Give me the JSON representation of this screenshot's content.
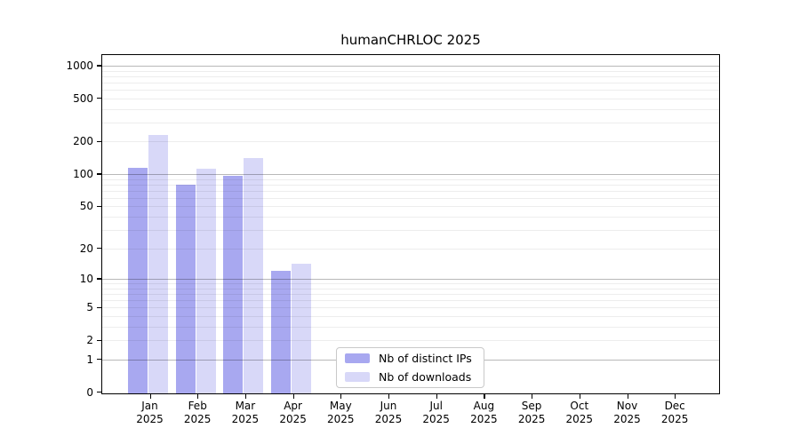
{
  "chart_data": {
    "type": "bar",
    "title": "humanCHRLOC 2025",
    "x_months": [
      "Jan",
      "Feb",
      "Mar",
      "Apr",
      "May",
      "Jun",
      "Jul",
      "Aug",
      "Sep",
      "Oct",
      "Nov",
      "Dec"
    ],
    "x_year": "2025",
    "yticks": [
      0,
      1,
      2,
      5,
      10,
      20,
      50,
      100,
      200,
      500,
      1000
    ],
    "ylim": [
      0,
      1000
    ],
    "yscale": "log1p",
    "grid": "horizontal-major-and-minor",
    "legend_position": "inside-bottom-center",
    "series": [
      {
        "name": "Nb of distinct IPs",
        "color": "#a8a8f0",
        "values": [
          114,
          79,
          96,
          12,
          0,
          0,
          0,
          0,
          0,
          0,
          0,
          0
        ]
      },
      {
        "name": "Nb of downloads",
        "color": "#d8d8f8",
        "values": [
          228,
          112,
          141,
          14,
          0,
          0,
          0,
          0,
          0,
          0,
          0,
          0
        ]
      }
    ]
  }
}
